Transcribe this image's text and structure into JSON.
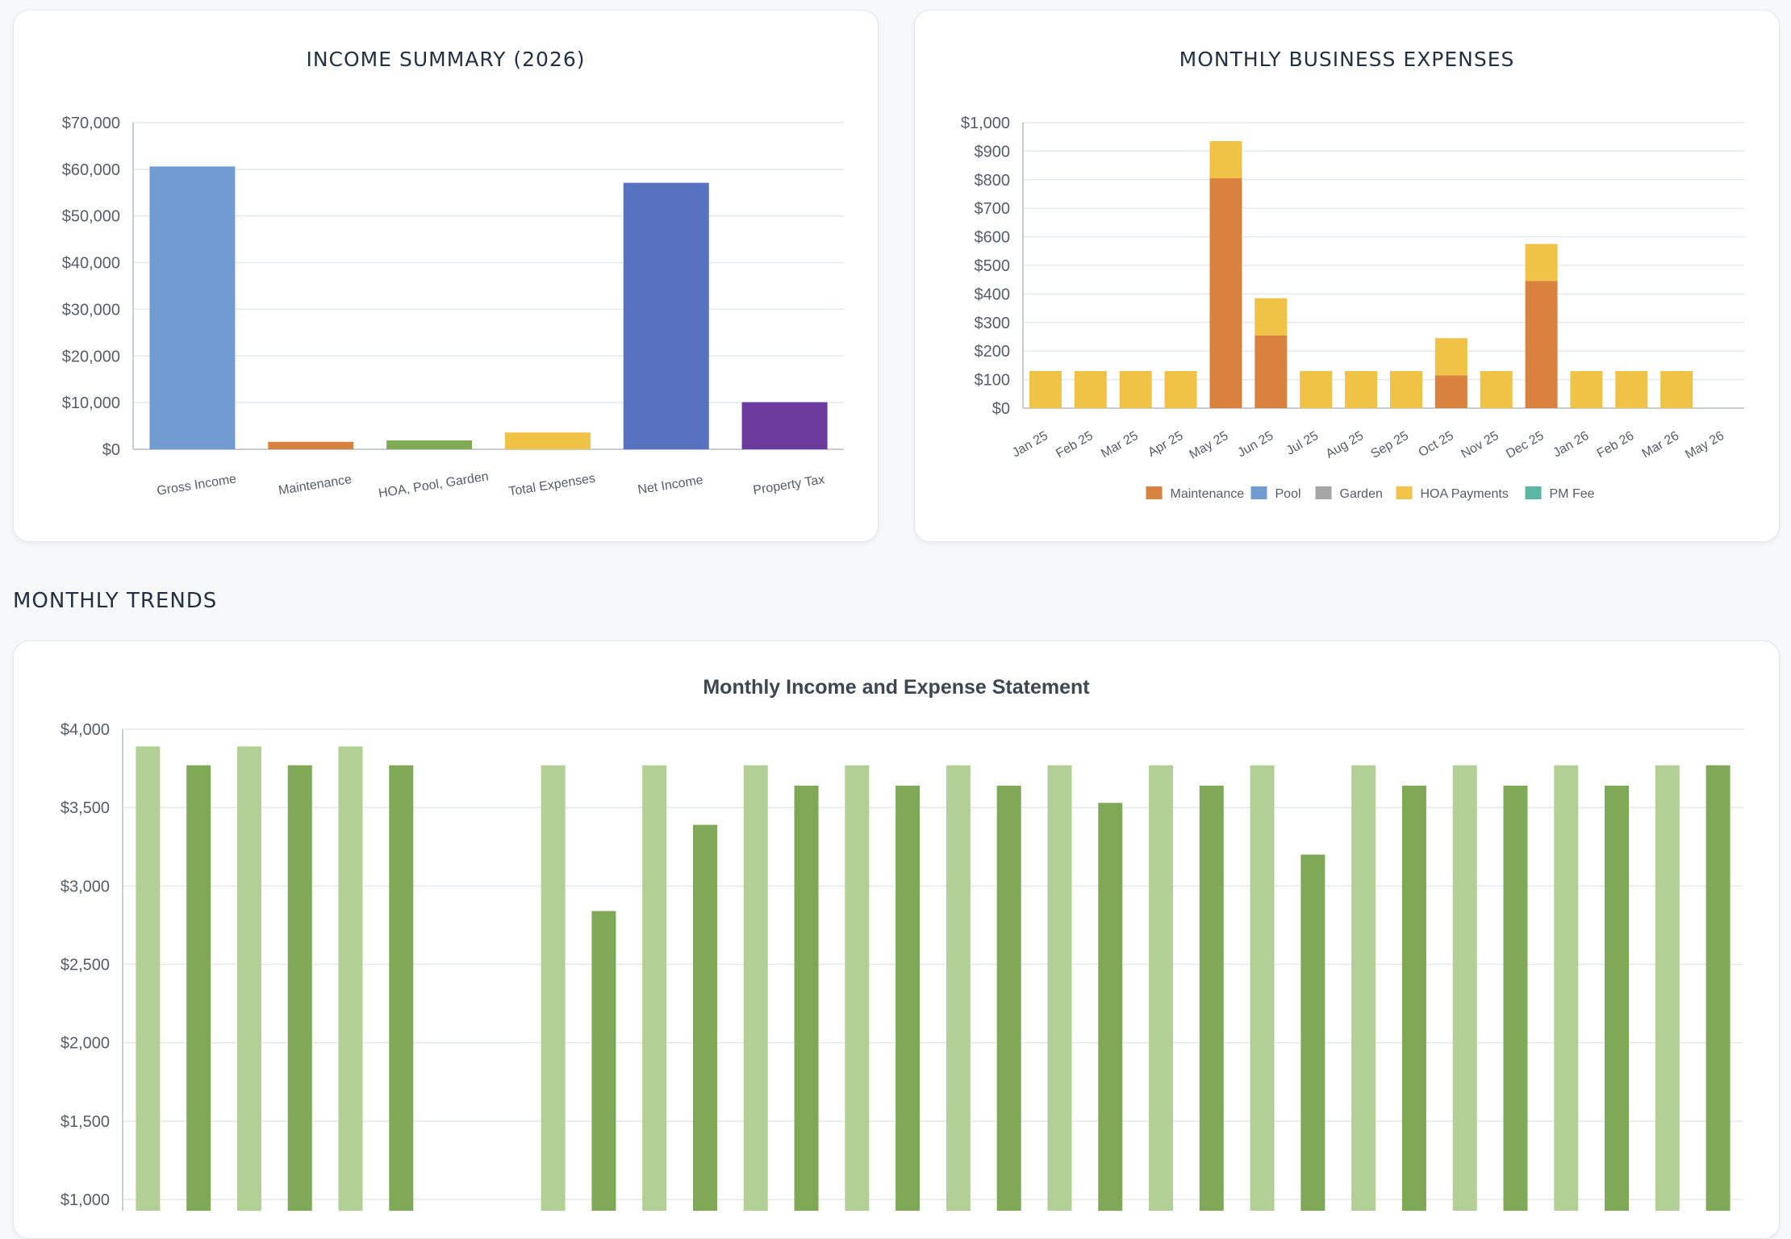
{
  "income_summary": {
    "title": "INCOME SUMMARY (2026)",
    "colors": [
      "#729bd2",
      "#d9823f",
      "#7fab54",
      "#f0c245",
      "#5672c0",
      "#6a3b9d"
    ],
    "chart_data": {
      "type": "bar",
      "title": "INCOME SUMMARY (2026)",
      "categories": [
        "Gross Income",
        "Maintenance",
        "HOA, Pool, Garden",
        "Total Expenses",
        "Net Income",
        "Property Tax"
      ],
      "values": [
        60600,
        1600,
        1900,
        3600,
        57100,
        10100
      ],
      "ylim": [
        0,
        70000
      ],
      "yticks": [
        "$0",
        "$10,000",
        "$20,000",
        "$30,000",
        "$40,000",
        "$50,000",
        "$60,000",
        "$70,000"
      ],
      "xlabel": "",
      "ylabel": "",
      "grid": true
    }
  },
  "monthly_expenses": {
    "title": "MONTHLY BUSINESS EXPENSES",
    "colors": {
      "Maintenance": "#d9823f",
      "Pool": "#729bd2",
      "Garden": "#a6a6a6",
      "HOA Payments": "#f0c245",
      "PM Fee": "#5bb7a4"
    },
    "chart_data": {
      "type": "bar",
      "stacked": true,
      "title": "MONTHLY BUSINESS EXPENSES",
      "categories": [
        "Jan 25",
        "Feb 25",
        "Mar 25",
        "Apr 25",
        "May 25",
        "Jun 25",
        "Jul 25",
        "Aug 25",
        "Sep 25",
        "Oct 25",
        "Nov 25",
        "Dec 25",
        "Jan 26",
        "Feb 26",
        "Mar 26",
        "May 26"
      ],
      "series": [
        {
          "name": "Maintenance",
          "values": [
            0,
            0,
            0,
            0,
            805,
            255,
            0,
            0,
            0,
            115,
            0,
            445,
            0,
            0,
            0,
            0
          ]
        },
        {
          "name": "Pool",
          "values": [
            0,
            0,
            0,
            0,
            0,
            0,
            0,
            0,
            0,
            0,
            0,
            0,
            0,
            0,
            0,
            0
          ]
        },
        {
          "name": "Garden",
          "values": [
            0,
            0,
            0,
            0,
            0,
            0,
            0,
            0,
            0,
            0,
            0,
            0,
            0,
            0,
            0,
            0
          ]
        },
        {
          "name": "HOA Payments",
          "values": [
            130,
            130,
            130,
            130,
            130,
            130,
            130,
            130,
            130,
            130,
            130,
            130,
            130,
            130,
            130,
            0
          ]
        },
        {
          "name": "PM Fee",
          "values": [
            0,
            0,
            0,
            0,
            0,
            0,
            0,
            0,
            0,
            0,
            0,
            0,
            0,
            0,
            0,
            0
          ]
        }
      ],
      "ylim": [
        0,
        1000
      ],
      "yticks": [
        "$0",
        "$100",
        "$200",
        "$300",
        "$400",
        "$500",
        "$600",
        "$700",
        "$800",
        "$900",
        "$1,000"
      ],
      "legend_position": "bottom",
      "grid": true
    }
  },
  "trends_section": {
    "heading": "MONTHLY TRENDS"
  },
  "monthly_statement": {
    "title": "Monthly Income and Expense Statement",
    "colors": {
      "light": "#b2cf95",
      "dark": "#7fa957"
    },
    "chart_data": {
      "type": "bar",
      "title": "Monthly Income and Expense Statement",
      "values": [
        3890,
        3770,
        3890,
        3770,
        3890,
        3770,
        null,
        null,
        3770,
        2840,
        3770,
        3390,
        3770,
        3640,
        3770,
        3640,
        3770,
        3640,
        3770,
        3530,
        3770,
        3640,
        3770,
        3200,
        3770,
        3640,
        3770,
        3640,
        3770,
        3640,
        3770,
        3770
      ],
      "shades": [
        "light",
        "dark",
        "light",
        "dark",
        "light",
        "dark",
        "light",
        "dark",
        "light",
        "dark",
        "light",
        "dark",
        "light",
        "dark",
        "light",
        "dark",
        "light",
        "dark",
        "light",
        "dark",
        "light",
        "dark",
        "light",
        "dark",
        "light",
        "dark",
        "light",
        "dark",
        "light",
        "dark",
        "light",
        "dark"
      ],
      "ylim": [
        1000,
        4000
      ],
      "yticks": [
        "$1,000",
        "$1,500",
        "$2,000",
        "$2,500",
        "$3,000",
        "$3,500",
        "$4,000"
      ],
      "grid": true
    }
  }
}
